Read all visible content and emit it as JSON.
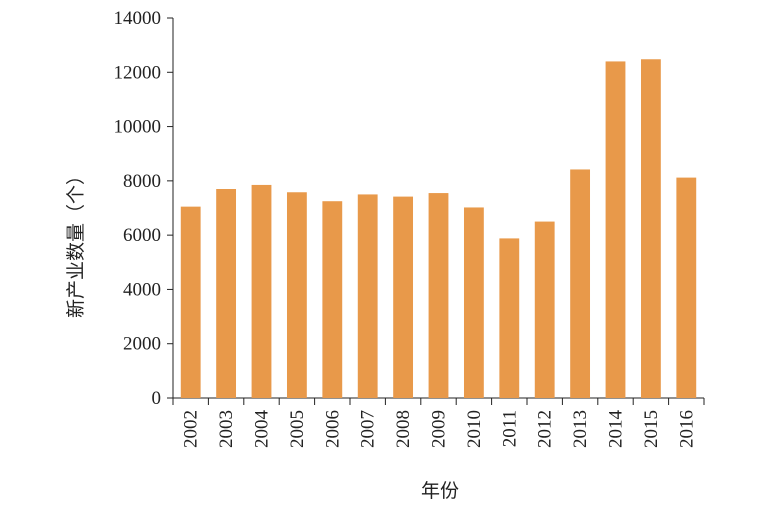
{
  "chart_data": {
    "type": "bar",
    "ylabel": "新产业数量（个）",
    "xlabel": "年份",
    "categories": [
      "2002",
      "2003",
      "2004",
      "2005",
      "2006",
      "2007",
      "2008",
      "2009",
      "2010",
      "2011",
      "2012",
      "2013",
      "2014",
      "2015",
      "2016"
    ],
    "values": [
      7050,
      7700,
      7850,
      7580,
      7250,
      7500,
      7420,
      7550,
      7020,
      5880,
      6500,
      8420,
      12400,
      12480,
      8120
    ],
    "ylim": [
      0,
      14000
    ],
    "yticks": [
      0,
      2000,
      4000,
      6000,
      8000,
      10000,
      12000,
      14000
    ],
    "bar_color": "#E8994A",
    "grid": false,
    "legend": "none"
  }
}
